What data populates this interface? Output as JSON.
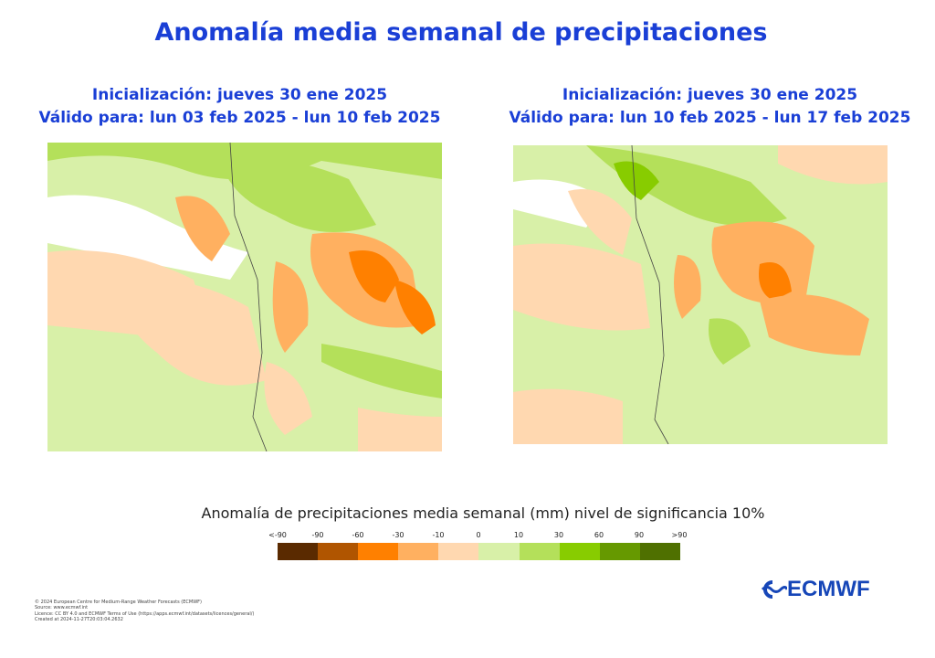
{
  "title": "Anomalía  media semanal de precipitaciones",
  "panels": [
    {
      "init": "Inicialización: jueves 30 ene 2025",
      "valid": "Válido para: lun 03 feb 2025 - lun 10 feb 2025"
    },
    {
      "init": "Inicialización: jueves 30 ene 2025",
      "valid": "Válido para: lun 10 feb 2025 - lun 17 feb 2025"
    }
  ],
  "legend": {
    "title": "Anomalía de precipitaciones media semanal (mm) nivel de significancia 10%",
    "ticks": [
      "<-90",
      "-90",
      "-60",
      "-30",
      "-10",
      "0",
      "10",
      "30",
      "60",
      "90",
      ">90"
    ],
    "colors": [
      "#5a2a00",
      "#b05500",
      "#ff8000",
      "#ffb060",
      "#ffd8b0",
      "#d8f0a8",
      "#b4e05a",
      "#88cc00",
      "#669900",
      "#4f7000"
    ]
  },
  "footer": [
    "© 2024 European Centre for Medium-Range Weather Forecasts (ECMWF)",
    "Source: www.ecmwf.int",
    "Licence: CC BY 4.0 and ECMWF Terms of Use (https://apps.ecmwf.int/datasets/licences/general/)",
    "Created at 2024-11-27T20:03:04.2632"
  ],
  "logo": "ECMWF"
}
